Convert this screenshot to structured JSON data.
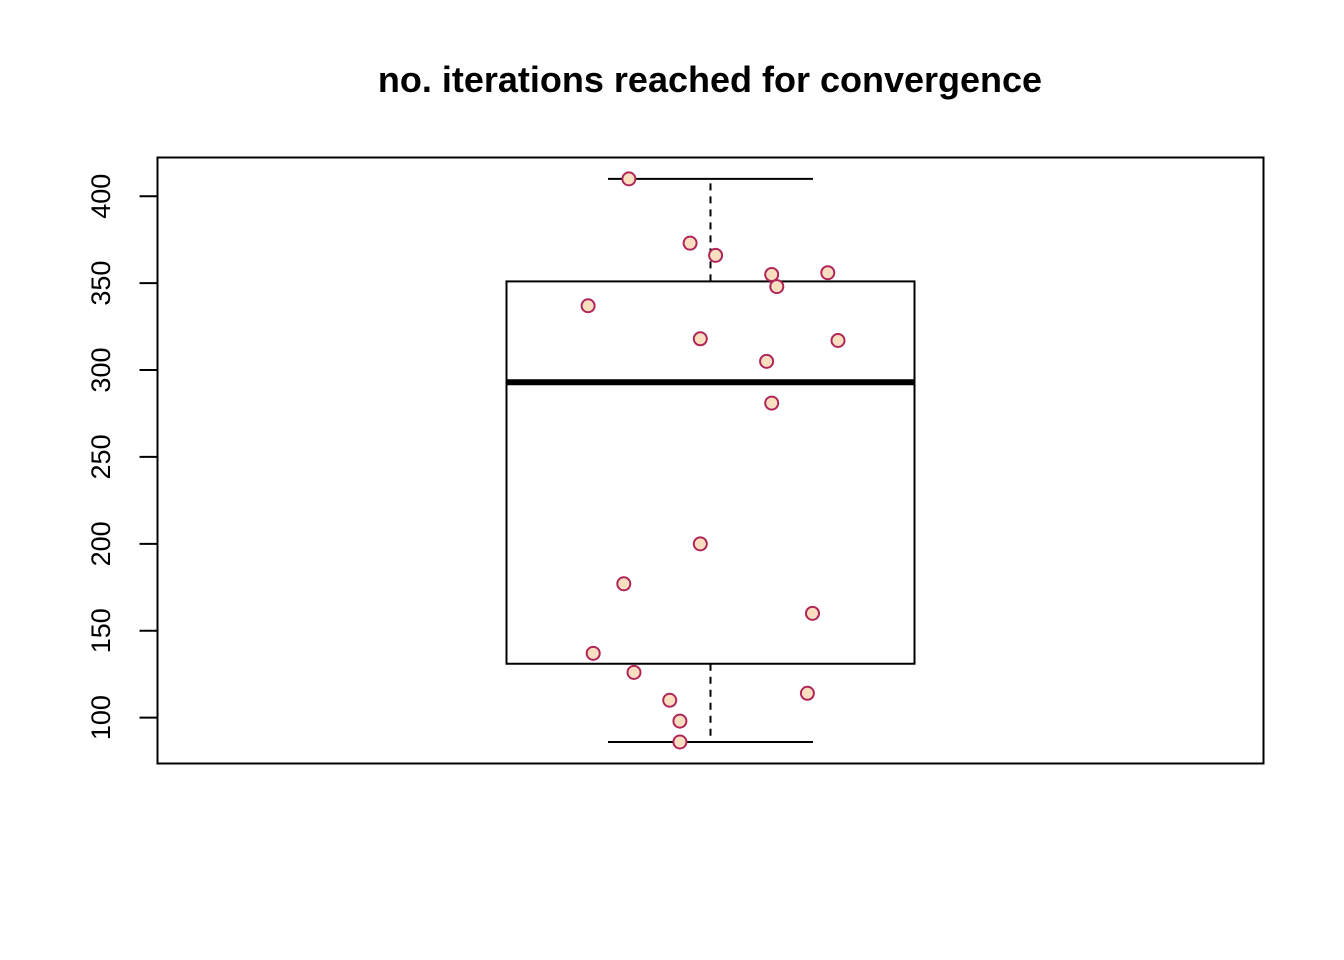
{
  "chart_data": {
    "type": "box",
    "title": "no. iterations reached for convergence",
    "xlabel": "",
    "ylabel": "",
    "ylim": [
      73.6,
      422.3
    ],
    "yticks": [
      100,
      150,
      200,
      250,
      300,
      350,
      400
    ],
    "box": {
      "whisker_low": 86,
      "q1": 131,
      "median": 293,
      "q3": 351,
      "whisker_high": 410
    },
    "points": [
      {
        "x": 0.84,
        "y": 410
      },
      {
        "x": 0.96,
        "y": 373
      },
      {
        "x": 1.01,
        "y": 366
      },
      {
        "x": 1.12,
        "y": 355
      },
      {
        "x": 1.23,
        "y": 356
      },
      {
        "x": 1.13,
        "y": 348
      },
      {
        "x": 0.76,
        "y": 337
      },
      {
        "x": 0.98,
        "y": 318
      },
      {
        "x": 1.25,
        "y": 317
      },
      {
        "x": 1.11,
        "y": 305
      },
      {
        "x": 1.12,
        "y": 281
      },
      {
        "x": 0.98,
        "y": 200
      },
      {
        "x": 0.83,
        "y": 177
      },
      {
        "x": 1.2,
        "y": 160
      },
      {
        "x": 0.77,
        "y": 137
      },
      {
        "x": 0.85,
        "y": 126
      },
      {
        "x": 0.92,
        "y": 110
      },
      {
        "x": 1.19,
        "y": 114
      },
      {
        "x": 0.94,
        "y": 98
      },
      {
        "x": 0.94,
        "y": 86
      }
    ],
    "colors": {
      "point_fill": "#f9dfc0",
      "point_stroke": "#b0265a",
      "line": "#000000"
    },
    "grid": false
  }
}
